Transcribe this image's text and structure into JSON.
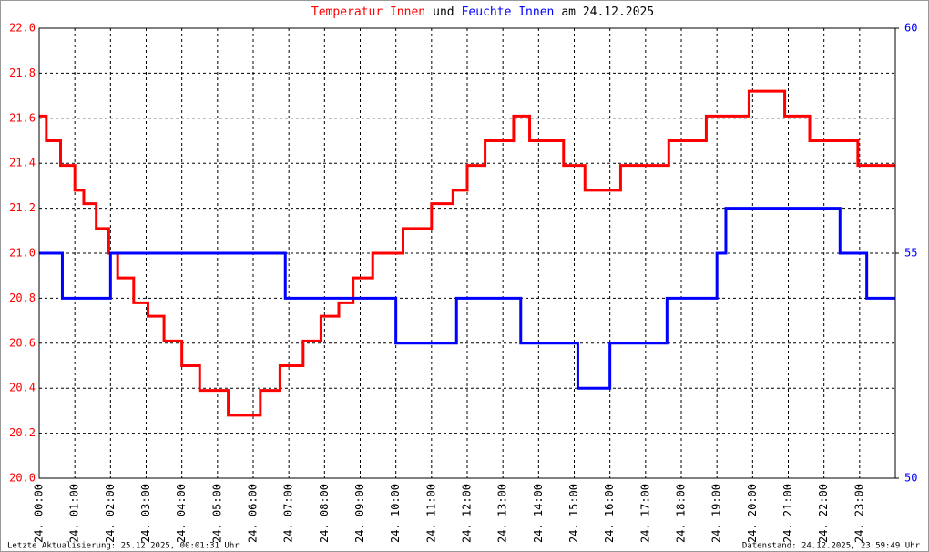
{
  "chart_data": {
    "type": "line",
    "title": [
      {
        "text": "Temperatur Innen",
        "color": "#ff0000"
      },
      {
        "text": "und",
        "color": "#000000"
      },
      {
        "text": "Feuchte Innen",
        "color": "#0000ff"
      },
      {
        "text": "am 24.12.2025",
        "color": "#000000"
      }
    ],
    "footer_left": "Letzte Aktualisierung: 25.12.2025, 00:01:31 Uhr",
    "footer_right": "Datenstand: 24.12.2025, 23:59:49 Uhr",
    "grid": true,
    "xlim": [
      0,
      24
    ],
    "xticks": [
      {
        "value": 0,
        "label": "24. 00:00"
      },
      {
        "value": 1,
        "label": "24. 01:00"
      },
      {
        "value": 2,
        "label": "24. 02:00"
      },
      {
        "value": 3,
        "label": "24. 03:00"
      },
      {
        "value": 4,
        "label": "24. 04:00"
      },
      {
        "value": 5,
        "label": "24. 05:00"
      },
      {
        "value": 6,
        "label": "24. 06:00"
      },
      {
        "value": 7,
        "label": "24. 07:00"
      },
      {
        "value": 8,
        "label": "24. 08:00"
      },
      {
        "value": 9,
        "label": "24. 09:00"
      },
      {
        "value": 10,
        "label": "24. 10:00"
      },
      {
        "value": 11,
        "label": "24. 11:00"
      },
      {
        "value": 12,
        "label": "24. 12:00"
      },
      {
        "value": 13,
        "label": "24. 13:00"
      },
      {
        "value": 14,
        "label": "24. 14:00"
      },
      {
        "value": 15,
        "label": "24. 15:00"
      },
      {
        "value": 16,
        "label": "24. 16:00"
      },
      {
        "value": 17,
        "label": "24. 17:00"
      },
      {
        "value": 18,
        "label": "24. 18:00"
      },
      {
        "value": 19,
        "label": "24. 19:00"
      },
      {
        "value": 20,
        "label": "24. 20:00"
      },
      {
        "value": 21,
        "label": "24. 21:00"
      },
      {
        "value": 22,
        "label": "24. 22:00"
      },
      {
        "value": 23,
        "label": "24. 23:00"
      }
    ],
    "ylim": [
      20,
      22
    ],
    "yticks": [
      {
        "value": 20,
        "label": "20.0"
      },
      20.2,
      20.4,
      20.6,
      20.8,
      {
        "value": 21,
        "label": "21.0"
      },
      21.2,
      21.4,
      21.6,
      21.8,
      {
        "value": 22,
        "label": "22.0"
      }
    ],
    "y_color": "#ff0000",
    "y2lim": [
      50,
      60
    ],
    "y2ticks": [
      50,
      55,
      60
    ],
    "y2_color": "#0000ff",
    "series": [
      {
        "name": "Temperatur Innen",
        "color": "#ff0000",
        "x": [
          0,
          0.2,
          0.2,
          0.6,
          0.6,
          1.0,
          1.0,
          1.25,
          1.25,
          1.6,
          1.6,
          1.95,
          1.95,
          2.2,
          2.2,
          2.65,
          2.65,
          3.05,
          3.05,
          3.5,
          3.5,
          4.0,
          4.0,
          4.5,
          4.5,
          5.3,
          5.3,
          6.2,
          6.2,
          6.75,
          6.75,
          7.4,
          7.4,
          7.9,
          7.9,
          8.4,
          8.4,
          8.8,
          8.8,
          9.35,
          9.35,
          10.2,
          10.2,
          11.0,
          11.0,
          11.6,
          11.6,
          12.0,
          12.0,
          12.5,
          12.5,
          13.3,
          13.3,
          13.75,
          13.75,
          14.7,
          14.7,
          15.3,
          15.3,
          16.3,
          16.3,
          17.65,
          17.65,
          18.7,
          18.7,
          19.9,
          19.9,
          20.9,
          20.9,
          21.6,
          21.6,
          22.95,
          22.95,
          24
        ],
        "values": [
          21.61,
          21.61,
          21.5,
          21.5,
          21.39,
          21.39,
          21.28,
          21.28,
          21.22,
          21.22,
          21.11,
          21.11,
          21.0,
          21.0,
          20.89,
          20.89,
          20.78,
          20.78,
          20.72,
          20.72,
          20.61,
          20.61,
          20.5,
          20.5,
          20.39,
          20.39,
          20.28,
          20.28,
          20.39,
          20.39,
          20.5,
          20.5,
          20.61,
          20.61,
          20.72,
          20.72,
          20.78,
          20.78,
          20.89,
          20.89,
          21.0,
          21.0,
          21.11,
          21.11,
          21.22,
          21.22,
          21.28,
          21.28,
          21.39,
          21.39,
          21.5,
          21.5,
          21.61,
          21.61,
          21.5,
          21.5,
          21.39,
          21.39,
          21.28,
          21.28,
          21.39,
          21.39,
          21.5,
          21.5,
          21.61,
          21.61,
          21.72,
          21.72,
          21.61,
          21.61,
          21.5,
          21.5,
          21.39,
          21.39
        ]
      },
      {
        "name": "Feuchte Innen",
        "color": "#0000ff",
        "axis": "y2",
        "x": [
          0,
          0.65,
          0.65,
          2.0,
          2.0,
          6.9,
          6.9,
          10.0,
          10.0,
          11.7,
          11.7,
          13.5,
          13.5,
          15.1,
          15.1,
          16.0,
          16.0,
          17.6,
          17.6,
          19.0,
          19.0,
          19.25,
          19.25,
          22.45,
          22.45,
          23.2,
          23.2,
          24
        ],
        "values": [
          55,
          55,
          54,
          54,
          55,
          55,
          54,
          54,
          53,
          53,
          54,
          54,
          53,
          53,
          52,
          52,
          53,
          53,
          54,
          54,
          55,
          55,
          56,
          56,
          55,
          55,
          54,
          54
        ]
      }
    ]
  }
}
